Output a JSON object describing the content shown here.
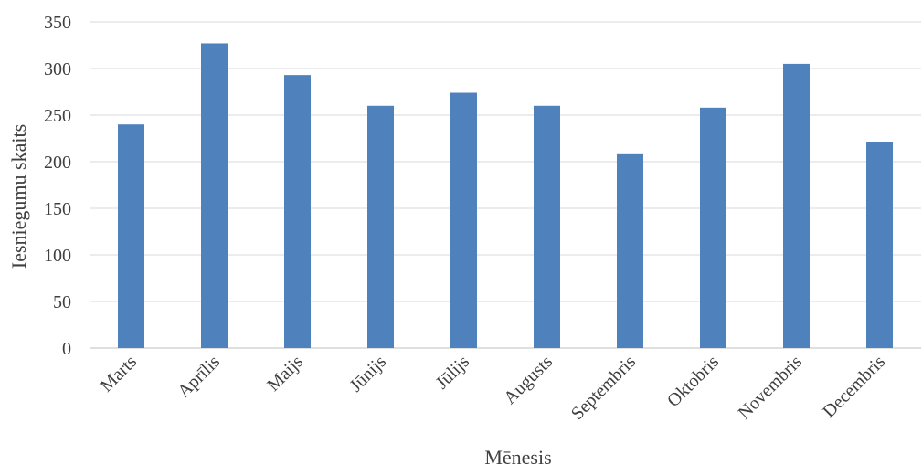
{
  "chart_data": {
    "type": "bar",
    "categories": [
      "Marts",
      "Aprīlis",
      "Maijs",
      "Jūnijs",
      "Jūlijs",
      "Augusts",
      "Septembris",
      "Oktobris",
      "Novembris",
      "Decembris"
    ],
    "series": [
      {
        "values": [
          240,
          327,
          293,
          260,
          274,
          260,
          208,
          258,
          305,
          221
        ]
      }
    ],
    "title": "",
    "xlabel": "Mēnesis",
    "ylabel": "Iesniegumu skaits",
    "ylim": [
      0,
      350
    ],
    "yticks": [
      0,
      50,
      100,
      150,
      200,
      250,
      300,
      350
    ],
    "grid": true,
    "legend": "none",
    "bar_color": "#4F81BD"
  }
}
